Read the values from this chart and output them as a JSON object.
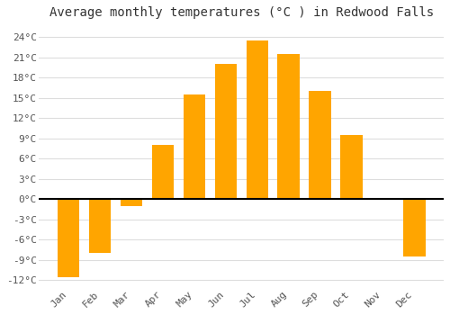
{
  "title": "Average monthly temperatures (°C ) in Redwood Falls",
  "months": [
    "Jan",
    "Feb",
    "Mar",
    "Apr",
    "May",
    "Jun",
    "Jul",
    "Aug",
    "Sep",
    "Oct",
    "Nov",
    "Dec"
  ],
  "values": [
    -11.5,
    -8.0,
    -1.0,
    8.0,
    15.5,
    20.0,
    23.5,
    21.5,
    16.0,
    9.5,
    0.2,
    -8.5
  ],
  "bar_color": "#FFA500",
  "bar_edge_color": "#FFA500",
  "ylim": [
    -13,
    26
  ],
  "yticks": [
    -12,
    -9,
    -6,
    -3,
    0,
    3,
    6,
    9,
    12,
    15,
    18,
    21,
    24
  ],
  "ytick_labels": [
    "-12°C",
    "-9°C",
    "-6°C",
    "-3°C",
    "0°C",
    "3°C",
    "6°C",
    "9°C",
    "12°C",
    "15°C",
    "18°C",
    "21°C",
    "24°C"
  ],
  "background_color": "#ffffff",
  "plot_bg_color": "#ffffff",
  "grid_color": "#dddddd",
  "title_fontsize": 10,
  "tick_fontsize": 8,
  "bar_width": 0.7
}
